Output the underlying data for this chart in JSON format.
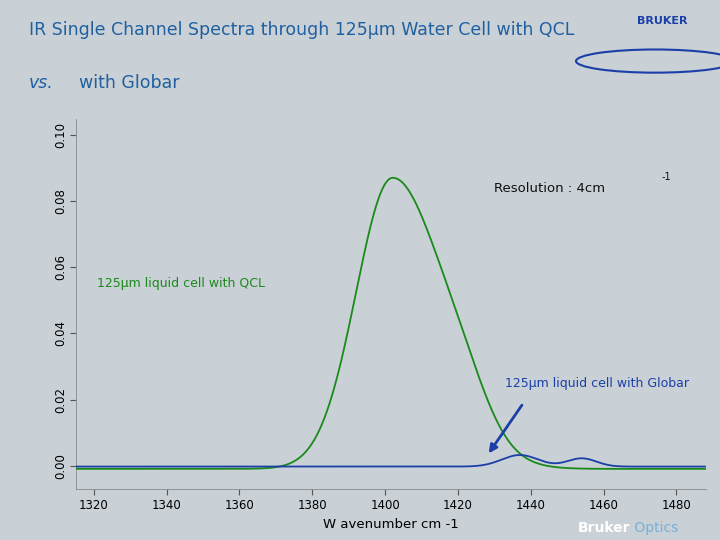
{
  "title_line1": "IR Single Channel Spectra through 125μm Water Cell with QCL",
  "title_line2_italic": "vs.",
  "title_line2_rest": "  with Globar",
  "title_color": "#2060a0",
  "xlabel": "W avenumber cm -1",
  "ylim": [
    -0.007,
    0.105
  ],
  "xlim": [
    1315,
    1488
  ],
  "xticks": [
    1320,
    1340,
    1360,
    1380,
    1400,
    1420,
    1440,
    1460,
    1480
  ],
  "yticks": [
    0.0,
    0.02,
    0.04,
    0.06,
    0.08,
    0.1
  ],
  "fig_bg_color": "#c9d0d6",
  "header_bg_color": "#e8ecef",
  "plot_bg_color": "#c9d0d6",
  "footer_bg_color": "#2060a0",
  "qcl_color": "#1a8a1a",
  "globar_color": "#1a3fa8",
  "annotation_resolution_color": "#111111",
  "annotation_qcl_color": "#1a8a1a",
  "annotation_globar_color": "#1a3fa8",
  "arrow_color": "#1a3fa8",
  "qcl_label": "125μm liquid cell with QCL",
  "globar_label": "125μm liquid cell with Globar",
  "resolution_label": "Resolution : 4cm",
  "footer_bruker": "Bruker",
  "footer_optics": " Optics"
}
